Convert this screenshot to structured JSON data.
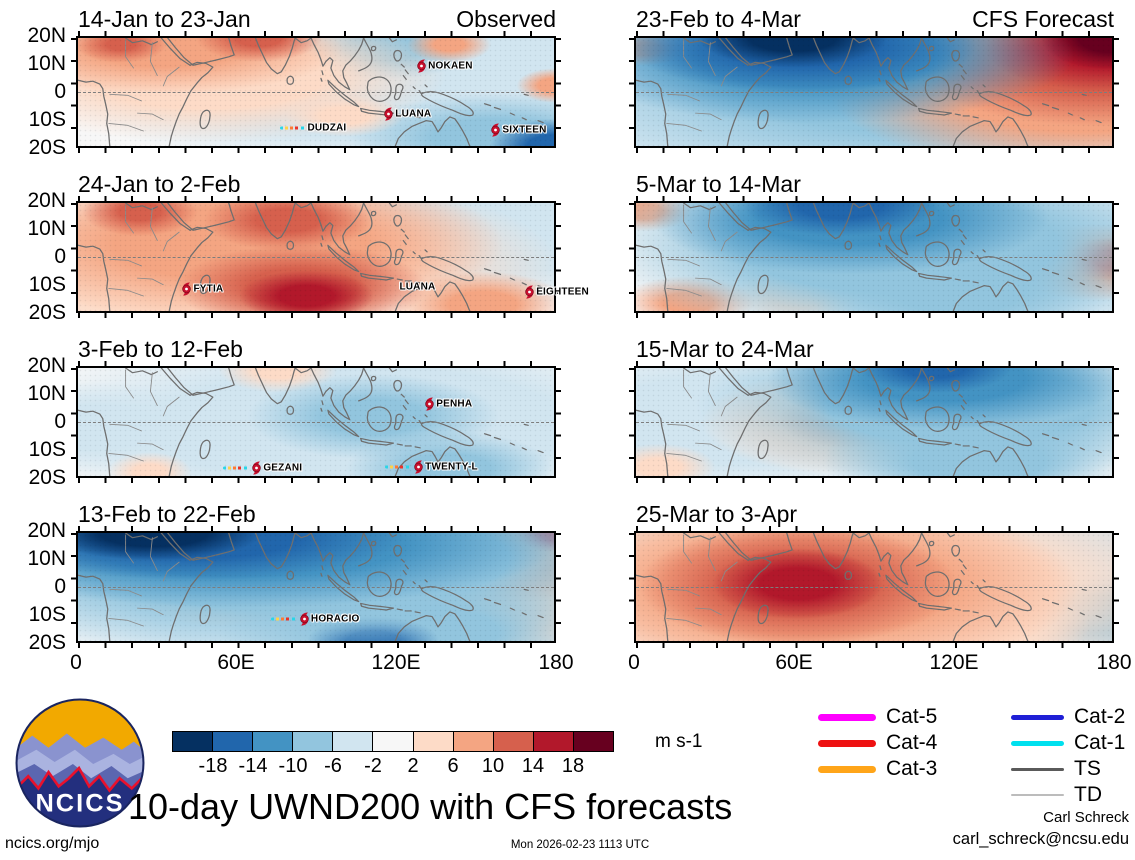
{
  "figure": {
    "main_title": "10-day UWND200 with CFS forecasts",
    "website": "ncics.org/mjo",
    "timestamp": "Mon 2026-02-23 1113 UTC",
    "credit_name": "Carl Schreck",
    "credit_email": "carl_schreck@ncsu.edu",
    "logo_text": "NCICS"
  },
  "storm_legend": {
    "left": [
      {
        "label": "Cat-5",
        "color": "#ff00ff",
        "weight": 7
      },
      {
        "label": "Cat-4",
        "color": "#ee1111",
        "weight": 7
      },
      {
        "label": "Cat-3",
        "color": "#ffa519",
        "weight": 7
      }
    ],
    "right": [
      {
        "label": "Cat-2",
        "color": "#1f1fd6",
        "weight": 5
      },
      {
        "label": "Cat-1",
        "color": "#00e0ee",
        "weight": 5
      },
      {
        "label": "TS",
        "color": "#5a5a5a",
        "weight": 3
      },
      {
        "label": "TD",
        "color": "#bcbcbc",
        "weight": 1.5
      }
    ]
  },
  "chart_data": {
    "type": "heatmap",
    "title": "10-day UWND200 with CFS forecasts",
    "variable": "200-hPa zonal wind anomaly (UWND200), 10-day means",
    "columns": [
      "Observed",
      "CFS Forecast"
    ],
    "lat_ticks": [
      "20N",
      "10N",
      "0",
      "10S",
      "20S"
    ],
    "lon_ticks": [
      "0",
      "60E",
      "120E",
      "180"
    ],
    "colorbar": {
      "units": "m s-1",
      "ticks": [
        "-18",
        "-14",
        "-10",
        "-6",
        "-2",
        "2",
        "6",
        "10",
        "14",
        "18"
      ],
      "colors": [
        "#053061",
        "#2166ac",
        "#4393c3",
        "#92c5de",
        "#d1e5f0",
        "#f7f7f7",
        "#fddbc7",
        "#f4a582",
        "#d6604d",
        "#b2182b",
        "#67001f"
      ]
    },
    "panels": [
      {
        "row": 0,
        "col": 0,
        "title": "14-Jan to 23-Jan",
        "corner_label": "Observed",
        "field": "f0",
        "summary": "Westerly anomalies over N Africa and Arabia; easterly anomalies over the west Pacific with a strong easterly maximum in the southeast corner",
        "storms": [
          {
            "name": "NOKAEN",
            "x": 72.3,
            "y": 26,
            "marker": true,
            "track": false
          },
          {
            "name": "LUANA",
            "x": 65.4,
            "y": 70,
            "marker": true,
            "track": false
          },
          {
            "name": "DUDZAI",
            "x": 44,
            "y": 83,
            "marker": false,
            "track": true
          },
          {
            "name": "SIXTEEN",
            "x": 87.9,
            "y": 85,
            "marker": true,
            "track": false
          }
        ]
      },
      {
        "row": 0,
        "col": 1,
        "title": "23-Feb to 4-Mar",
        "corner_label": "CFS Forecast",
        "field": "f1",
        "summary": "Strong easterly anomalies north of India; strong westerly anomalies in the northeast Pacific corner extending over the central Pacific",
        "storms": []
      },
      {
        "row": 1,
        "col": 0,
        "title": "24-Jan to 2-Feb",
        "corner_label": "",
        "field": "f2",
        "summary": "Broad westerly anomalies from Africa across the Indian Ocean with a maximum in the south-central Indian Ocean; weak easterlies over the west Pacific",
        "storms": [
          {
            "name": "FYTIA",
            "x": 23,
            "y": 80,
            "marker": true,
            "track": false
          },
          {
            "name": "LUANA",
            "x": 69,
            "y": 78,
            "marker": false,
            "track": false
          },
          {
            "name": "EIGHTEEN",
            "x": 95,
            "y": 82,
            "marker": true,
            "track": false
          }
        ]
      },
      {
        "row": 1,
        "col": 1,
        "title": "5-Mar to 14-Mar",
        "corner_label": "",
        "field": "f3",
        "summary": "Easterly anomalies over India and the Maritime Continent; weak westerlies near the eastern edge",
        "storms": []
      },
      {
        "row": 2,
        "col": 0,
        "title": "3-Feb to 12-Feb",
        "corner_label": "",
        "field": "f4",
        "summary": "Weak anomalies overall; modest easterly anomalies over the Maritime Continent and southwest Pacific",
        "storms": [
          {
            "name": "PENHA",
            "x": 74,
            "y": 33,
            "marker": true,
            "track": false
          },
          {
            "name": "GEZANI",
            "x": 32,
            "y": 93,
            "marker": true,
            "track": true
          },
          {
            "name": "TWENTY-L",
            "x": 66,
            "y": 92,
            "marker": true,
            "track": true
          }
        ]
      },
      {
        "row": 2,
        "col": 1,
        "title": "15-Mar to 24-Mar",
        "corner_label": "",
        "field": "f5",
        "summary": "Easterly anomalies north of the Maritime Continent; weak westerly anomalies in the central Indian Ocean",
        "storms": []
      },
      {
        "row": 3,
        "col": 0,
        "title": "13-Feb to 22-Feb",
        "corner_label": "",
        "field": "f6",
        "summary": "Strong easterly anomalies over N Africa, Arabia and the Bay of Bengal; westerly anomalies in the northeast Pacific corner",
        "storms": [
          {
            "name": "HORACIO",
            "x": 42,
            "y": 80,
            "marker": true,
            "track": true
          }
        ]
      },
      {
        "row": 3,
        "col": 1,
        "title": "25-Mar to 3-Apr",
        "corner_label": "",
        "field": "f7",
        "summary": "Strong westerly anomaly maximum in the central Indian Ocean near 60E; weak easterlies over the east Pacific",
        "storms": []
      }
    ]
  }
}
